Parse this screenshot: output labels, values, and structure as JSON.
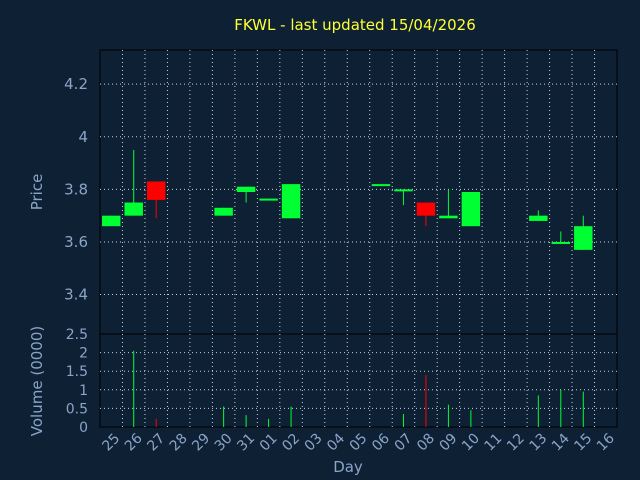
{
  "chart_data": {
    "type": "candlestick",
    "title": "FKWL - last updated 15/04/2026",
    "xlabel": "Day",
    "price_panel": {
      "ylabel": "Price",
      "ylim": [
        3.25,
        4.33
      ],
      "yticks": [
        "4.2",
        "4",
        "3.8",
        "3.6",
        "3.4"
      ],
      "ytick_values": [
        4.2,
        4.0,
        3.8,
        3.6,
        3.4
      ],
      "grid": true
    },
    "volume_panel": {
      "ylabel": "Volume (0000)",
      "ylim": [
        0,
        2.5
      ],
      "yticks": [
        "2.5",
        "2",
        "1.5",
        "1",
        "0.5",
        "0"
      ],
      "ytick_values": [
        2.5,
        2.0,
        1.5,
        1.0,
        0.5,
        0.0
      ],
      "grid": true
    },
    "x_ticks": [
      "25",
      "26",
      "27",
      "28",
      "29",
      "30",
      "31",
      "01",
      "02",
      "03",
      "04",
      "05",
      "06",
      "07",
      "08",
      "09",
      "10",
      "11",
      "12",
      "13",
      "14",
      "15",
      "16"
    ],
    "colors": {
      "up": "#00ff33",
      "down": "#ff0000",
      "background": "#0e2034",
      "text": "#8aa5c8",
      "title": "#ffff33"
    },
    "candles": [
      {
        "x": "25",
        "open": 3.66,
        "close": 3.7,
        "high": 3.7,
        "low": 3.66,
        "volume": 0.0
      },
      {
        "x": "26",
        "open": 3.7,
        "close": 3.75,
        "high": 3.95,
        "low": 3.7,
        "volume": 2.05
      },
      {
        "x": "27",
        "open": 3.83,
        "close": 3.76,
        "high": 3.83,
        "low": 3.69,
        "volume": 0.22
      },
      {
        "x": "30",
        "open": 3.7,
        "close": 3.73,
        "high": 3.73,
        "low": 3.7,
        "volume": 0.55
      },
      {
        "x": "31",
        "open": 3.79,
        "close": 3.81,
        "high": 3.81,
        "low": 3.75,
        "volume": 0.32
      },
      {
        "x": "01",
        "open": 3.76,
        "close": 3.765,
        "high": 3.765,
        "low": 3.76,
        "volume": 0.22
      },
      {
        "x": "02",
        "open": 3.69,
        "close": 3.82,
        "high": 3.82,
        "low": 3.69,
        "volume": 0.55
      },
      {
        "x": "06",
        "open": 3.815,
        "close": 3.82,
        "high": 3.82,
        "low": 3.815,
        "volume": 0.0
      },
      {
        "x": "07",
        "open": 3.795,
        "close": 3.8,
        "high": 3.8,
        "low": 3.74,
        "volume": 0.35
      },
      {
        "x": "08",
        "open": 3.75,
        "close": 3.7,
        "high": 3.75,
        "low": 3.66,
        "volume": 1.4
      },
      {
        "x": "09",
        "open": 3.69,
        "close": 3.7,
        "high": 3.8,
        "low": 3.69,
        "volume": 0.6
      },
      {
        "x": "10",
        "open": 3.66,
        "close": 3.79,
        "high": 3.79,
        "low": 3.66,
        "volume": 0.45
      },
      {
        "x": "13",
        "open": 3.68,
        "close": 3.7,
        "high": 3.72,
        "low": 3.68,
        "volume": 0.85
      },
      {
        "x": "14",
        "open": 3.595,
        "close": 3.6,
        "high": 3.64,
        "low": 3.595,
        "volume": 1.0
      },
      {
        "x": "15",
        "open": 3.57,
        "close": 3.66,
        "high": 3.7,
        "low": 3.57,
        "volume": 0.95
      }
    ]
  }
}
